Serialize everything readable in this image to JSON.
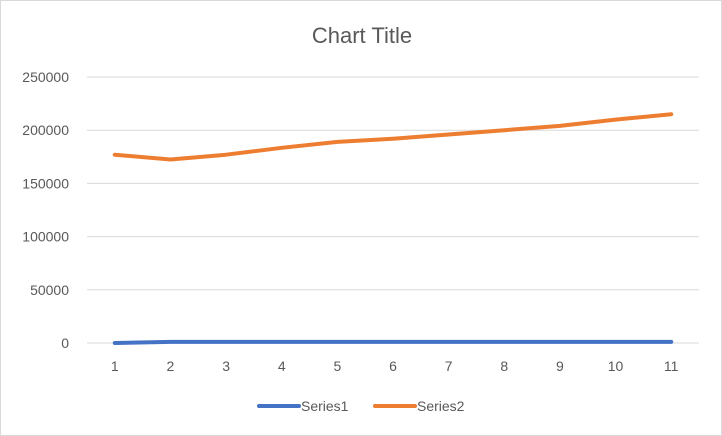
{
  "chart_data": {
    "type": "line",
    "title": "Chart Title",
    "xlabel": "",
    "ylabel": "",
    "x": [
      1,
      2,
      3,
      4,
      5,
      6,
      7,
      8,
      9,
      10,
      11
    ],
    "ylim": [
      0,
      250000
    ],
    "yticks": [
      0,
      50000,
      100000,
      150000,
      200000,
      250000
    ],
    "grid": true,
    "legend_position": "bottom",
    "series": [
      {
        "name": "Series1",
        "color": "#4472C4",
        "values": [
          0,
          1000,
          1000,
          1000,
          1000,
          1000,
          1000,
          1000,
          1000,
          1000,
          1000
        ]
      },
      {
        "name": "Series2",
        "color": "#ED7D31",
        "values": [
          177000,
          172500,
          177000,
          183500,
          189000,
          192000,
          196000,
          200000,
          204000,
          210000,
          215000
        ]
      }
    ]
  }
}
